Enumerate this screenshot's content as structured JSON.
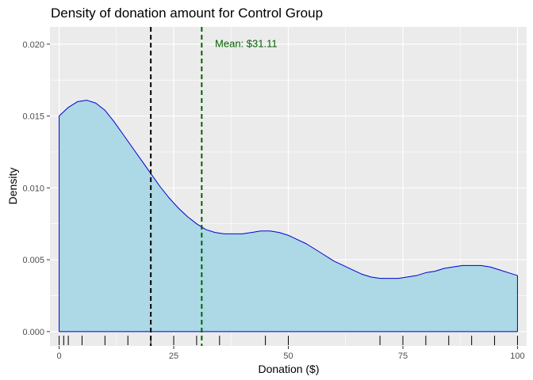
{
  "chart_data": {
    "type": "area",
    "title": "Density of donation amount for Control Group",
    "xlabel": "Donation ($)",
    "ylabel": "Density",
    "xlim": [
      -2,
      102
    ],
    "ylim": [
      -0.001,
      0.0212
    ],
    "x_ticks": [
      0,
      25,
      50,
      75,
      100
    ],
    "y_ticks": [
      0.0,
      0.005,
      0.01,
      0.015,
      0.02
    ],
    "x_tick_labels": [
      "0",
      "25",
      "50",
      "75",
      "100"
    ],
    "y_tick_labels": [
      "0.000",
      "0.005",
      "0.010",
      "0.015",
      "0.020"
    ],
    "grid": true,
    "series": [
      {
        "x": [
          0,
          2,
          4,
          6,
          8,
          10,
          12,
          14,
          16,
          18,
          20,
          22,
          24,
          26,
          28,
          30,
          32,
          34,
          36,
          38,
          40,
          42,
          44,
          46,
          48,
          50,
          52,
          54,
          56,
          58,
          60,
          62,
          64,
          66,
          68,
          70,
          72,
          74,
          76,
          78,
          80,
          82,
          84,
          86,
          88,
          90,
          92,
          94,
          96,
          98,
          100
        ],
        "y": [
          0.015,
          0.0156,
          0.016,
          0.0161,
          0.0159,
          0.0154,
          0.0146,
          0.0137,
          0.0128,
          0.0119,
          0.011,
          0.0101,
          0.0093,
          0.0086,
          0.008,
          0.0075,
          0.0071,
          0.0069,
          0.0068,
          0.0068,
          0.0068,
          0.0069,
          0.007,
          0.007,
          0.0069,
          0.0067,
          0.0064,
          0.0061,
          0.0057,
          0.0053,
          0.0049,
          0.0046,
          0.0043,
          0.004,
          0.0038,
          0.0037,
          0.0037,
          0.0037,
          0.0038,
          0.0039,
          0.0041,
          0.0042,
          0.0044,
          0.0045,
          0.0046,
          0.0046,
          0.0046,
          0.0045,
          0.0043,
          0.0041,
          0.0039
        ]
      }
    ],
    "vlines": [
      {
        "x": 20,
        "color": "#000000",
        "style": "dashed"
      },
      {
        "x": 31.11,
        "color": "#006400",
        "style": "dashed"
      }
    ],
    "rug_x": [
      0,
      1,
      2,
      5,
      10,
      15,
      20,
      25,
      30,
      35,
      45,
      50,
      70,
      75,
      80,
      85,
      90,
      95,
      100
    ],
    "annotations": [
      {
        "text": "Mean: $31.11",
        "x": 34,
        "y": 0.0198,
        "color": "#006400"
      }
    ],
    "colors": {
      "fill": "#add8e6",
      "line": "#0000cd",
      "panel": "#ebebeb",
      "grid_major": "#ffffff"
    }
  }
}
